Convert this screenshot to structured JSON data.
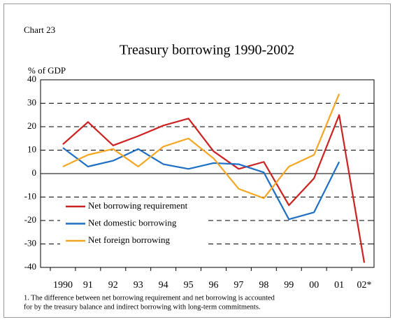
{
  "header": "Chart 23",
  "chart_data": {
    "type": "line",
    "title": "Treasury borrowing 1990-2002",
    "ylabel": "% of GDP",
    "categories": [
      "1990",
      "91",
      "92",
      "93",
      "94",
      "95",
      "96",
      "97",
      "98",
      "99",
      "00",
      "01",
      "02*"
    ],
    "series": [
      {
        "name": "Net borrowing requirement",
        "color": "#cc2222",
        "values": [
          12.5,
          22,
          12,
          16,
          20.5,
          23.5,
          9.5,
          2,
          5,
          -13.5,
          -2,
          25,
          -38
        ]
      },
      {
        "name": "Net domestic borrowing",
        "color": "#1f6fc4",
        "values": [
          11,
          3,
          5.5,
          10.5,
          4,
          2,
          4.5,
          4,
          0.5,
          -19.5,
          -16.5,
          5,
          null
        ]
      },
      {
        "name": "Net foreign borrowing",
        "color": "#f5a623",
        "values": [
          3,
          8,
          10.5,
          3,
          11.5,
          15,
          6.5,
          -6.5,
          -10.5,
          3,
          8,
          34,
          null
        ]
      }
    ],
    "ylim": [
      -40,
      40
    ],
    "yticks": [
      -40,
      -30,
      -20,
      -10,
      0,
      10,
      20,
      30,
      40
    ],
    "grid": true,
    "legend": "lower-left"
  },
  "footnote": [
    "1. The difference between net borrowing requirement and net borrowing is accounted",
    "for by the treasury balance and indirect borrowing with long-term commitments."
  ]
}
